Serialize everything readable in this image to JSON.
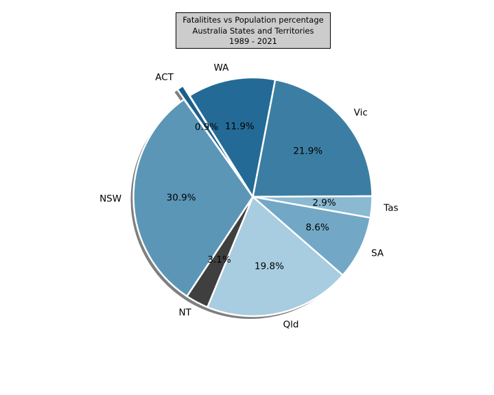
{
  "chart_data": {
    "type": "pie",
    "title_lines": [
      "Fatalitites vs Population percentage",
      "Australia States and Territories",
      "1989 - 2021"
    ],
    "slices": [
      {
        "label": "WA",
        "value": 11.9,
        "pct_text": "11.9%",
        "color": "#236b96",
        "exploded": false
      },
      {
        "label": "Vic",
        "value": 21.9,
        "pct_text": "21.9%",
        "color": "#3c7ea3",
        "exploded": false
      },
      {
        "label": "Tas",
        "value": 2.9,
        "pct_text": "2.9%",
        "color": "#8bb9d1",
        "exploded": false
      },
      {
        "label": "SA",
        "value": 8.6,
        "pct_text": "8.6%",
        "color": "#72a8c6",
        "exploded": false
      },
      {
        "label": "Qld",
        "value": 19.8,
        "pct_text": "19.8%",
        "color": "#a8cce0",
        "exploded": false
      },
      {
        "label": "NT",
        "value": 3.1,
        "pct_text": "3.1%",
        "color": "#3f3f3f",
        "exploded": false
      },
      {
        "label": "NSW",
        "value": 30.9,
        "pct_text": "30.9%",
        "color": "#5b96b7",
        "exploded": false
      },
      {
        "label": "ACT",
        "value": 0.9,
        "pct_text": "0.9%",
        "color": "#1b5f8c",
        "exploded": true
      }
    ],
    "shadow": true,
    "edge_color": "#ffffff"
  }
}
